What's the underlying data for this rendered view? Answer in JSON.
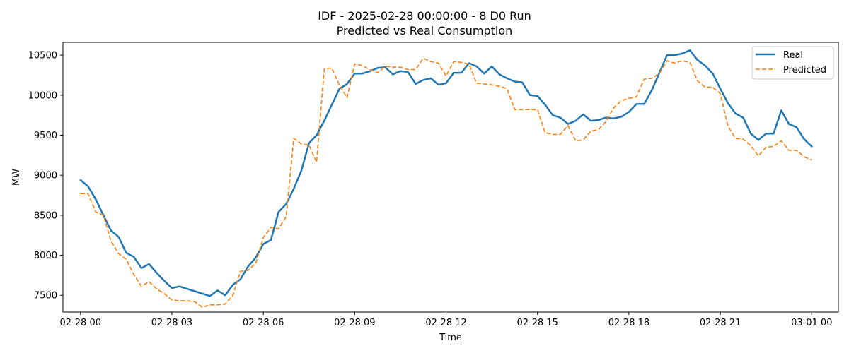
{
  "chart_data": {
    "type": "line",
    "title": "IDF - 2025-02-28 00:00:00 - 8 D0 Run",
    "subtitle": "Predicted vs Real Consumption",
    "xlabel": "Time",
    "ylabel": "MW",
    "x_ticks": [
      "02-28 00",
      "02-28 03",
      "02-28 06",
      "02-28 09",
      "02-28 12",
      "02-28 15",
      "02-28 18",
      "02-28 21",
      "03-01 00"
    ],
    "y_ticks": [
      7500,
      8000,
      8500,
      9000,
      9500,
      10000,
      10500
    ],
    "xlim": [
      -0.575,
      24.875
    ],
    "ylim": [
      7290,
      10660
    ],
    "step_hours": 0.25,
    "grid": false,
    "legend_position": "top-right",
    "series": [
      {
        "name": "Real",
        "color": "#1f77b4",
        "style": "solid",
        "values": [
          8940,
          8860,
          8700,
          8500,
          8310,
          8230,
          8030,
          7980,
          7840,
          7890,
          7780,
          7680,
          7590,
          7610,
          7580,
          7550,
          7520,
          7490,
          7560,
          7500,
          7630,
          7700,
          7860,
          7970,
          8140,
          8190,
          8540,
          8640,
          8830,
          9060,
          9400,
          9500,
          9680,
          9880,
          10080,
          10140,
          10270,
          10270,
          10300,
          10340,
          10350,
          10260,
          10300,
          10290,
          10140,
          10190,
          10210,
          10130,
          10150,
          10280,
          10280,
          10400,
          10360,
          10270,
          10360,
          10260,
          10210,
          10170,
          10160,
          10000,
          9990,
          9880,
          9750,
          9720,
          9640,
          9680,
          9760,
          9680,
          9690,
          9720,
          9710,
          9730,
          9790,
          9890,
          9890,
          10060,
          10280,
          10500,
          10500,
          10520,
          10560,
          10440,
          10370,
          10270,
          10080,
          9900,
          9770,
          9720,
          9520,
          9440,
          9520,
          9520,
          9810,
          9640,
          9600,
          9450,
          9360
        ]
      },
      {
        "name": "Predicted",
        "color": "#ff7f0e",
        "style": "dashed",
        "values": [
          8770,
          8770,
          8540,
          8500,
          8180,
          8020,
          7950,
          7760,
          7610,
          7670,
          7580,
          7520,
          7440,
          7430,
          7430,
          7420,
          7350,
          7380,
          7380,
          7390,
          7500,
          7800,
          7810,
          7900,
          8220,
          8350,
          8330,
          8480,
          9460,
          9390,
          9380,
          9160,
          10330,
          10340,
          10120,
          9970,
          10390,
          10370,
          10320,
          10280,
          10360,
          10350,
          10350,
          10320,
          10320,
          10460,
          10420,
          10400,
          10240,
          10420,
          10410,
          10390,
          10150,
          10140,
          10130,
          10110,
          10080,
          9820,
          9820,
          9820,
          9820,
          9530,
          9510,
          9510,
          9620,
          9430,
          9440,
          9550,
          9570,
          9670,
          9840,
          9930,
          9960,
          9980,
          10200,
          10210,
          10270,
          10430,
          10400,
          10430,
          10410,
          10180,
          10100,
          10100,
          10020,
          9610,
          9460,
          9450,
          9370,
          9240,
          9350,
          9360,
          9430,
          9310,
          9310,
          9230,
          9190
        ]
      }
    ]
  }
}
